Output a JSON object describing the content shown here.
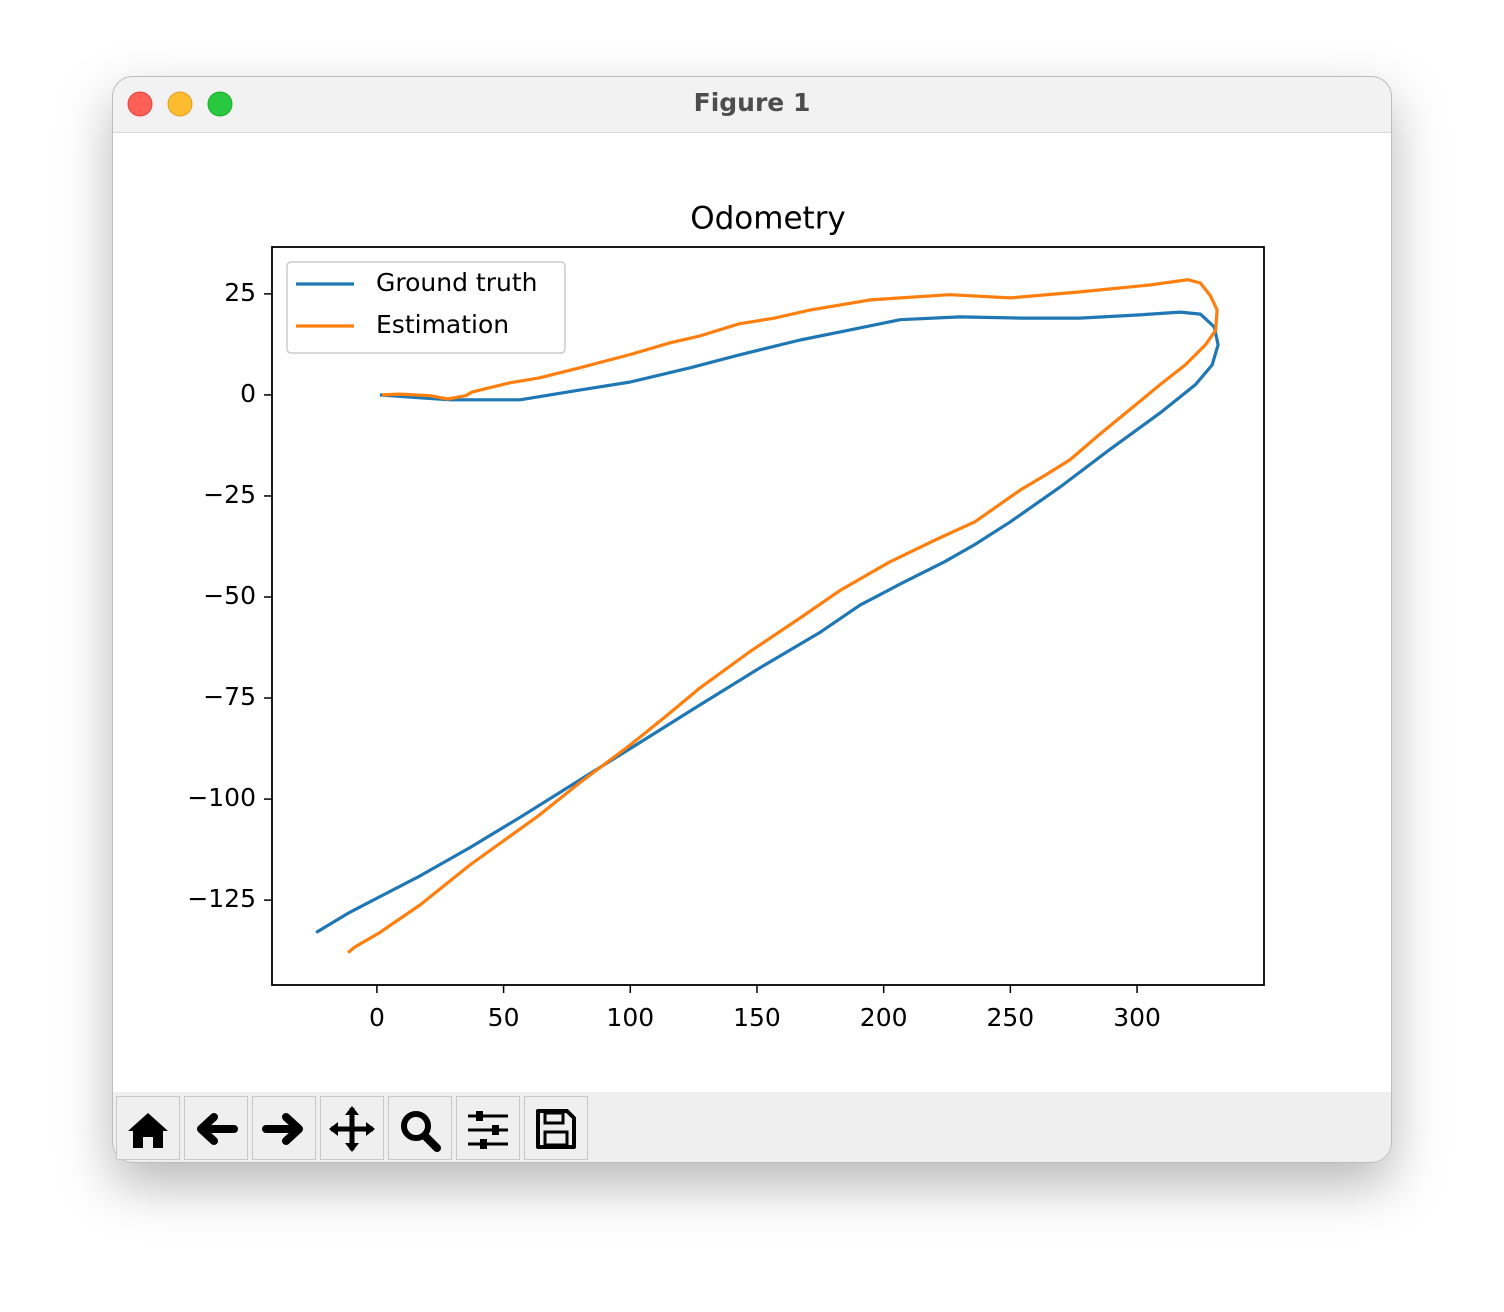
{
  "window": {
    "title": "Figure 1"
  },
  "chart_data": {
    "type": "line",
    "title": "Odometry",
    "xlim": [
      -41.4,
      350.1
    ],
    "ylim": [
      -146.0,
      36.6
    ],
    "xticks": [
      0,
      50,
      100,
      150,
      200,
      250,
      300
    ],
    "yticks": [
      {
        "value": -125,
        "label": "−125"
      },
      {
        "value": -100,
        "label": "−100"
      },
      {
        "value": -75,
        "label": "−75"
      },
      {
        "value": -50,
        "label": "−50"
      },
      {
        "value": -25,
        "label": "−25"
      },
      0,
      25
    ],
    "legend": "upper-left",
    "series": [
      {
        "name": "Ground truth",
        "color": "#1f77b4",
        "x": [
          1.2,
          17,
          28.8,
          38.7,
          56.5,
          80,
          100,
          123.6,
          143,
          167,
          186.7,
          206.5,
          230,
          254,
          277.5,
          301,
          317,
          325,
          330.5,
          332,
          329.6,
          323,
          309,
          289,
          269.6,
          250,
          236,
          224,
          206.5,
          190.7,
          175,
          151,
          127.5,
          103.8,
          80,
          56.5,
          36.7,
          17,
          -10.7,
          -24
        ],
        "values": [
          0,
          -0.7,
          -1.2,
          -1.2,
          -1.2,
          1.2,
          3.2,
          6.7,
          9.9,
          13.6,
          16.1,
          18.6,
          19.3,
          19,
          19,
          19.8,
          20.5,
          20,
          16.8,
          12.4,
          7.4,
          2.5,
          -4.5,
          -13.6,
          -22.8,
          -31.4,
          -37,
          -41.3,
          -46.8,
          -52,
          -58.7,
          -67.6,
          -76.7,
          -86,
          -95.3,
          -104.5,
          -112,
          -119,
          -128,
          -133
        ]
      },
      {
        "name": "Estimation",
        "color": "#ff7f0e",
        "x": [
          2,
          9,
          21,
          28,
          35,
          37.5,
          52.5,
          64,
          80,
          100,
          115.7,
          127.5,
          143,
          157,
          171,
          194.6,
          226,
          250,
          277.5,
          305,
          320,
          325,
          329,
          331.6,
          331,
          327,
          319,
          309,
          297,
          285,
          273.6,
          264,
          254,
          236,
          222,
          202.5,
          183,
          167,
          147,
          127.5,
          113.7,
          100,
          80,
          64,
          48.5,
          36.7,
          17,
          1.2,
          -8.7,
          -11.4
        ],
        "values": [
          0,
          0.2,
          -0.2,
          -1,
          -0.2,
          0.7,
          3,
          4.2,
          6.7,
          10,
          12.9,
          14.6,
          17.6,
          19,
          21,
          23.5,
          24.8,
          24,
          25.5,
          27.2,
          28.5,
          27.7,
          24.5,
          21,
          16,
          12.4,
          7.4,
          2.5,
          -3.7,
          -9.9,
          -16,
          -19.8,
          -23.5,
          -31.4,
          -35.4,
          -41.3,
          -48.3,
          -55.2,
          -63.6,
          -72.5,
          -79.7,
          -86.6,
          -96,
          -104,
          -111,
          -116.3,
          -126.2,
          -133,
          -136.6,
          -138
        ]
      }
    ]
  }
}
